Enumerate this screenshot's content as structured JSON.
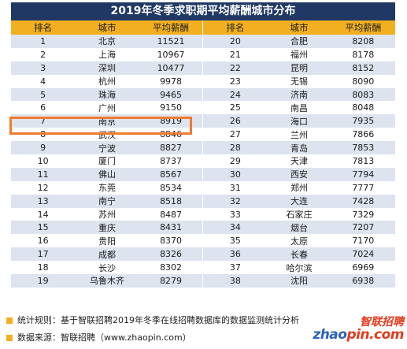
{
  "chart_data": {
    "type": "table",
    "title": "2019年冬季求职期平均薪酬城市分布",
    "columns": [
      "排名",
      "城市",
      "平均薪酬",
      "排名",
      "城市",
      "平均薪酬"
    ],
    "rows": [
      [
        "1",
        "北京",
        "11521",
        "20",
        "合肥",
        "8208"
      ],
      [
        "2",
        "上海",
        "10967",
        "21",
        "福州",
        "8178"
      ],
      [
        "3",
        "深圳",
        "10477",
        "22",
        "昆明",
        "8152"
      ],
      [
        "4",
        "杭州",
        "9978",
        "23",
        "无锡",
        "8090"
      ],
      [
        "5",
        "珠海",
        "9465",
        "24",
        "济南",
        "8083"
      ],
      [
        "6",
        "广州",
        "9150",
        "25",
        "南昌",
        "8048"
      ],
      [
        "7",
        "南京",
        "8919",
        "26",
        "海口",
        "7935"
      ],
      [
        "8",
        "武汉",
        "8846",
        "27",
        "兰州",
        "7866"
      ],
      [
        "9",
        "宁波",
        "8827",
        "28",
        "青岛",
        "7853"
      ],
      [
        "10",
        "厦门",
        "8737",
        "29",
        "天津",
        "7813"
      ],
      [
        "11",
        "佛山",
        "8567",
        "30",
        "西安",
        "7794"
      ],
      [
        "12",
        "东莞",
        "8534",
        "31",
        "郑州",
        "7777"
      ],
      [
        "13",
        "南宁",
        "8518",
        "32",
        "大连",
        "7428"
      ],
      [
        "14",
        "苏州",
        "8487",
        "33",
        "石家庄",
        "7329"
      ],
      [
        "15",
        "重庆",
        "8431",
        "34",
        "烟台",
        "7207"
      ],
      [
        "16",
        "贵阳",
        "8370",
        "35",
        "太原",
        "7170"
      ],
      [
        "17",
        "成都",
        "8326",
        "36",
        "长春",
        "7024"
      ],
      [
        "18",
        "长沙",
        "8302",
        "37",
        "哈尔滨",
        "6969"
      ],
      [
        "19",
        "乌鲁木齐",
        "8279",
        "38",
        "沈阳",
        "6938"
      ]
    ],
    "highlight_row": 7
  },
  "notes": [
    "统计规则：基于智联招聘2019年冬季在线招聘数据库的数据监测统计分析",
    "数据来源：智联招聘（www.zhaopin.com）"
  ],
  "logo": {
    "cn": "智联招聘",
    "en_left": "zhao",
    "en_right": "pin.com"
  },
  "colors": {
    "title_bg": "#203864",
    "header_bg": "#f2b020",
    "stripe": "#dde4ef",
    "highlight": "#f07a30",
    "logo_red": "#e23a1e",
    "logo_blue": "#2a64b4"
  }
}
